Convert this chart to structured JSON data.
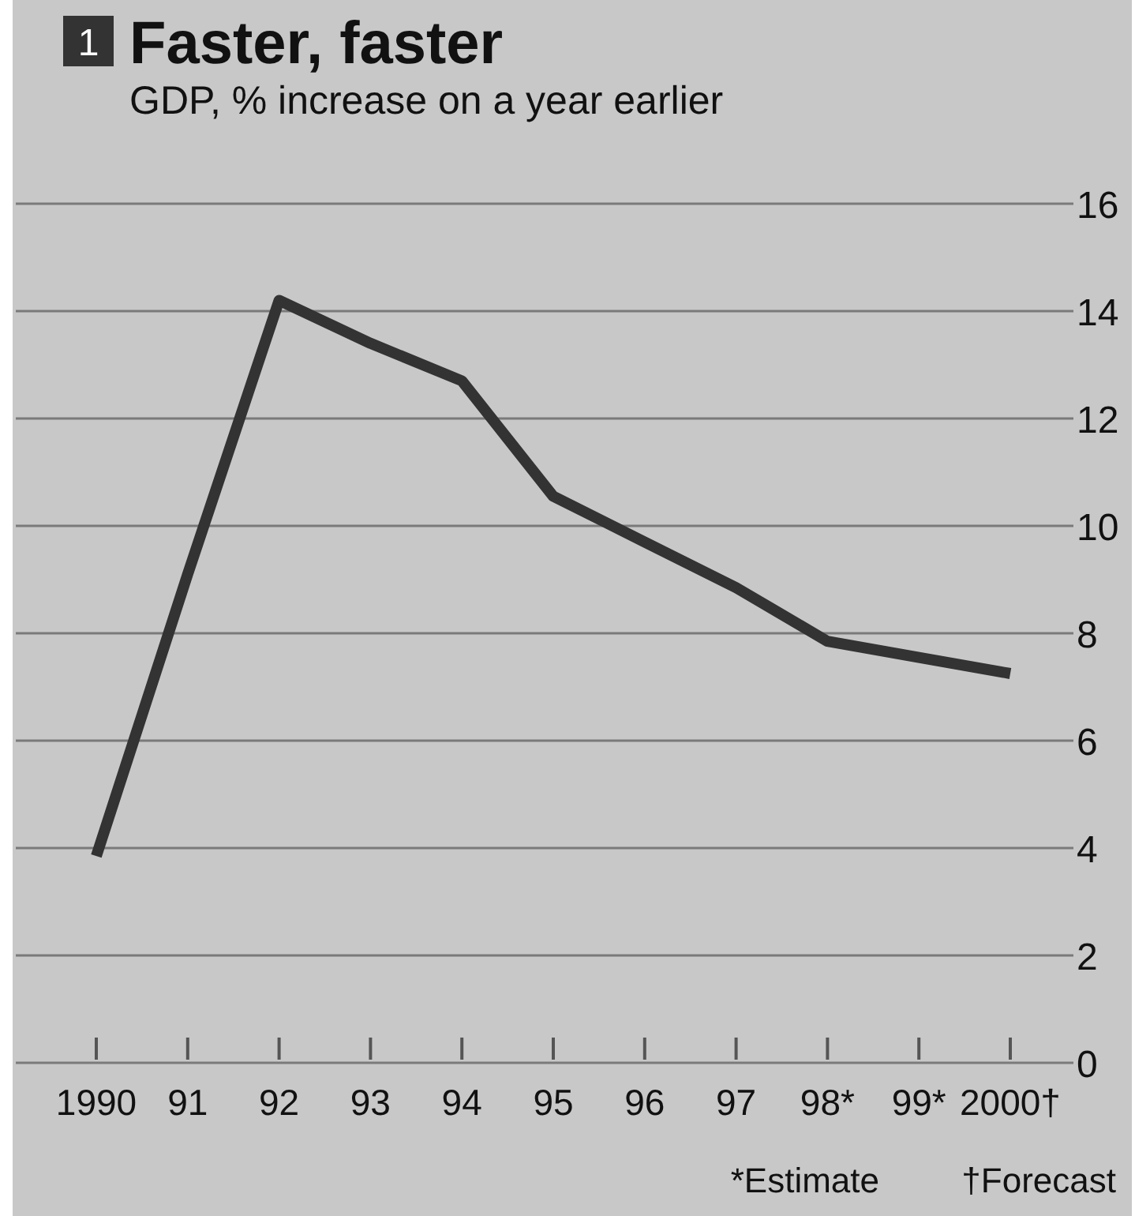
{
  "chart_data": {
    "type": "line",
    "title": "Faster, faster",
    "subtitle": "GDP, % increase on a year earlier",
    "categories": [
      "1990",
      "91",
      "92",
      "93",
      "94",
      "95",
      "96",
      "97",
      "98*",
      "99*",
      "2000†"
    ],
    "series": [
      {
        "color": "#333333",
        "values": [
          3.85,
          9.1,
          14.2,
          13.4,
          12.7,
          10.55,
          9.7,
          8.85,
          7.85,
          7.55,
          7.25
        ]
      }
    ],
    "ylim": [
      0,
      16
    ],
    "yticks": [
      0,
      2,
      4,
      6,
      8,
      10,
      12,
      14,
      16
    ],
    "grid": "y",
    "marker": "none",
    "line_style": "solid",
    "annotations": [
      "1",
      "*Estimate",
      "†Forecast"
    ]
  }
}
